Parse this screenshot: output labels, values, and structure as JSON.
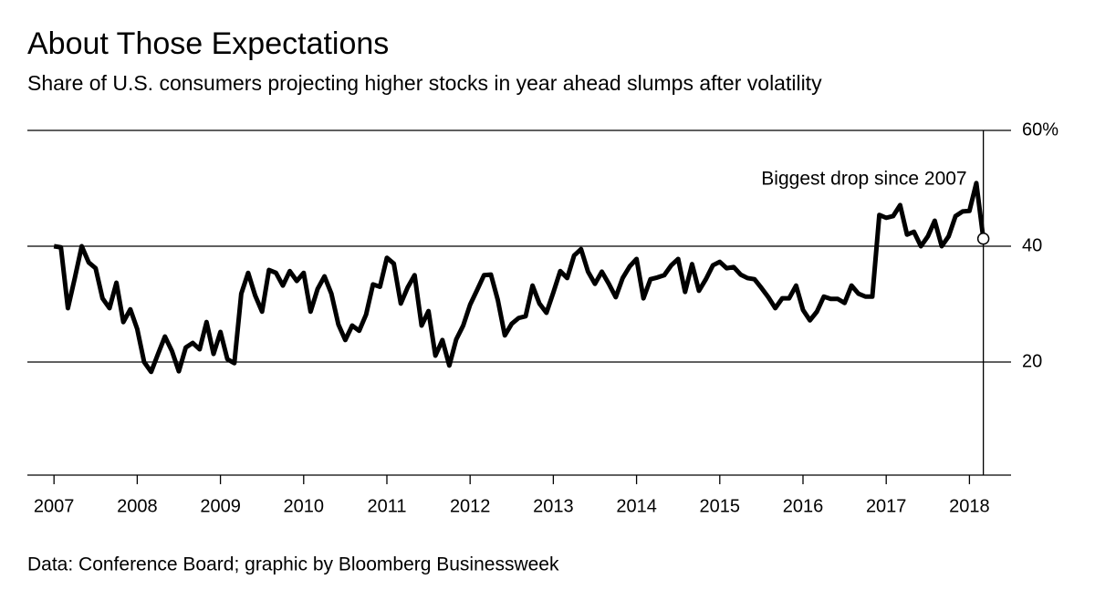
{
  "chart_data": {
    "type": "line",
    "title": "About Those Expectations",
    "subtitle": "Share of U.S. consumers projecting higher stocks in year ahead slumps after volatility",
    "source": "Data: Conference Board; graphic by Bloomberg Businessweek",
    "annotation": "Biggest drop since 2007",
    "color": "#000000",
    "grid": true,
    "xlim": [
      2006.68,
      2018.5
    ],
    "xticks": [
      2007,
      2008,
      2009,
      2010,
      2011,
      2012,
      2013,
      2014,
      2015,
      2016,
      2017,
      2018
    ],
    "ylim": [
      0,
      60
    ],
    "yticks": [
      20,
      40,
      {
        "value": 60,
        "label": "60%"
      }
    ],
    "x": [
      2007,
      2007.083,
      2007.167,
      2007.25,
      2007.333,
      2007.417,
      2007.5,
      2007.583,
      2007.667,
      2007.75,
      2007.833,
      2007.917,
      2008,
      2008.083,
      2008.167,
      2008.25,
      2008.333,
      2008.417,
      2008.5,
      2008.583,
      2008.667,
      2008.75,
      2008.833,
      2008.917,
      2009,
      2009.083,
      2009.167,
      2009.25,
      2009.333,
      2009.417,
      2009.5,
      2009.583,
      2009.667,
      2009.75,
      2009.833,
      2009.917,
      2010,
      2010.083,
      2010.167,
      2010.25,
      2010.333,
      2010.417,
      2010.5,
      2010.583,
      2010.667,
      2010.75,
      2010.833,
      2010.917,
      2011,
      2011.083,
      2011.167,
      2011.25,
      2011.333,
      2011.417,
      2011.5,
      2011.583,
      2011.667,
      2011.75,
      2011.833,
      2011.917,
      2012,
      2012.083,
      2012.167,
      2012.25,
      2012.333,
      2012.417,
      2012.5,
      2012.583,
      2012.667,
      2012.75,
      2012.833,
      2012.917,
      2013,
      2013.083,
      2013.167,
      2013.25,
      2013.333,
      2013.417,
      2013.5,
      2013.583,
      2013.667,
      2013.75,
      2013.833,
      2013.917,
      2014,
      2014.083,
      2014.167,
      2014.25,
      2014.333,
      2014.417,
      2014.5,
      2014.583,
      2014.667,
      2014.75,
      2014.833,
      2014.917,
      2015,
      2015.083,
      2015.167,
      2015.25,
      2015.333,
      2015.417,
      2015.5,
      2015.583,
      2015.667,
      2015.75,
      2015.833,
      2015.917,
      2016,
      2016.083,
      2016.167,
      2016.25,
      2016.333,
      2016.417,
      2016.5,
      2016.583,
      2016.667,
      2016.75,
      2016.833,
      2016.917,
      2017,
      2017.083,
      2017.167,
      2017.25,
      2017.333,
      2017.417,
      2017.5,
      2017.583,
      2017.667,
      2017.75,
      2017.833,
      2017.917,
      2018,
      2018.083,
      2018.167
    ],
    "values": [
      40,
      39.8,
      29.3,
      34.5,
      40,
      37.2,
      36.2,
      31,
      29.3,
      33.7,
      26.9,
      29.1,
      25.7,
      20,
      18.3,
      21.4,
      24.4,
      21.9,
      18.4,
      22.5,
      23.3,
      22.2,
      26.9,
      21.4,
      25.2,
      20.5,
      19.8,
      31.8,
      35.4,
      31.5,
      28.7,
      35.9,
      35.4,
      33.2,
      35.7,
      34,
      35.4,
      28.7,
      32.6,
      34.8,
      31.8,
      26.5,
      23.8,
      26.3,
      25.4,
      28.2,
      33.4,
      33,
      38,
      37,
      30.1,
      32.9,
      35,
      26.3,
      28.8,
      21.1,
      23.8,
      19.4,
      23.9,
      26.3,
      29.9,
      32.4,
      35,
      35.1,
      30.7,
      24.6,
      26.6,
      27.6,
      27.9,
      33.2,
      30.1,
      28.5,
      32,
      35.7,
      34.5,
      38.4,
      39.5,
      35.6,
      33.5,
      35.6,
      33.5,
      31.2,
      34.5,
      36.5,
      37.8,
      31,
      34.3,
      34.6,
      35,
      36.7,
      37.8,
      32.1,
      36.9,
      32.3,
      34.3,
      36.7,
      37.3,
      36.2,
      36.4,
      35.1,
      34.5,
      34.3,
      32.8,
      31.2,
      29.3,
      31,
      31,
      33.2,
      29,
      27.2,
      28.7,
      31.3,
      30.9,
      30.9,
      30.2,
      33.2,
      31.8,
      31.3,
      31.3,
      45.4,
      44.9,
      45.2,
      47.1,
      42,
      42.5,
      40,
      41.7,
      44.4,
      40,
      41.7,
      45.2,
      46,
      46.1,
      50.9,
      41.3
    ]
  }
}
